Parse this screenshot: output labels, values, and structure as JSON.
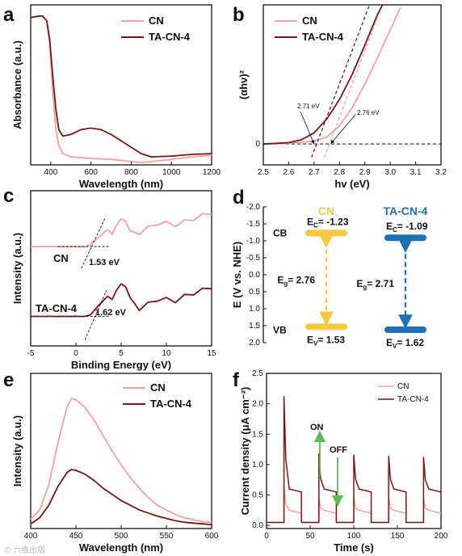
{
  "colors": {
    "cn": "#f2a0a3",
    "ta": "#7a1418",
    "cn_label": "#f5c842",
    "ta_label": "#1f6fb5",
    "axis": "#111111",
    "arrow_green": "#5cb85c"
  },
  "watermark": "© 六维出版",
  "chart_data": [
    {
      "panel": "a",
      "type": "line",
      "xlabel": "Wavelength (nm)",
      "ylabel": "Absorbance (a.u.)",
      "xlim": [
        300,
        1200
      ],
      "ylim": [
        0,
        1
      ],
      "x_ticks": [
        "400",
        "600",
        "800",
        "1000",
        "1200"
      ],
      "legend": [
        "CN",
        "TA-CN-4"
      ],
      "series": [
        {
          "name": "CN",
          "points": [
            [
              300,
              0.92
            ],
            [
              340,
              0.93
            ],
            [
              360,
              0.93
            ],
            [
              380,
              0.9
            ],
            [
              395,
              0.75
            ],
            [
              410,
              0.45
            ],
            [
              425,
              0.22
            ],
            [
              440,
              0.12
            ],
            [
              460,
              0.07
            ],
            [
              500,
              0.05
            ],
            [
              600,
              0.04
            ],
            [
              700,
              0.035
            ],
            [
              800,
              0.02
            ],
            [
              850,
              0.015
            ],
            [
              900,
              0.02
            ],
            [
              1000,
              0.035
            ],
            [
              1100,
              0.05
            ],
            [
              1200,
              0.06
            ]
          ]
        },
        {
          "name": "TA-CN-4",
          "points": [
            [
              300,
              0.92
            ],
            [
              340,
              0.93
            ],
            [
              360,
              0.93
            ],
            [
              380,
              0.9
            ],
            [
              395,
              0.78
            ],
            [
              410,
              0.55
            ],
            [
              425,
              0.35
            ],
            [
              440,
              0.22
            ],
            [
              460,
              0.18
            ],
            [
              500,
              0.19
            ],
            [
              550,
              0.22
            ],
            [
              600,
              0.23
            ],
            [
              650,
              0.22
            ],
            [
              700,
              0.19
            ],
            [
              750,
              0.15
            ],
            [
              800,
              0.11
            ],
            [
              850,
              0.07
            ],
            [
              900,
              0.05
            ],
            [
              1000,
              0.055
            ],
            [
              1100,
              0.065
            ],
            [
              1200,
              0.07
            ]
          ]
        }
      ]
    },
    {
      "panel": "b",
      "type": "line",
      "xlabel": "hv (eV)",
      "ylabel": "(αhν)²",
      "xlim": [
        2.5,
        3.2
      ],
      "ylim": [
        -0.15,
        1
      ],
      "x_ticks": [
        "2.5",
        "2.6",
        "2.7",
        "2.8",
        "2.9",
        "3.0",
        "3.1",
        "3.2"
      ],
      "y_ticks": [
        "0"
      ],
      "legend": [
        "CN",
        "TA-CN-4"
      ],
      "annotations": [
        "2.71 eV",
        "2.76 eV"
      ],
      "series": [
        {
          "name": "CN",
          "points": [
            [
              2.5,
              0.0
            ],
            [
              2.6,
              0.005
            ],
            [
              2.7,
              0.02
            ],
            [
              2.75,
              0.05
            ],
            [
              2.8,
              0.13
            ],
            [
              2.85,
              0.26
            ],
            [
              2.9,
              0.43
            ],
            [
              2.95,
              0.62
            ],
            [
              3.0,
              0.82
            ],
            [
              3.04,
              0.98
            ]
          ]
        },
        {
          "name": "TA-CN-4",
          "points": [
            [
              2.5,
              0.0
            ],
            [
              2.6,
              0.01
            ],
            [
              2.65,
              0.03
            ],
            [
              2.7,
              0.08
            ],
            [
              2.75,
              0.18
            ],
            [
              2.8,
              0.32
            ],
            [
              2.85,
              0.5
            ],
            [
              2.9,
              0.71
            ],
            [
              2.95,
              0.93
            ],
            [
              2.97,
              1.0
            ]
          ]
        }
      ],
      "fits": [
        {
          "name": "CN",
          "x0": 2.76,
          "x1": 2.95
        },
        {
          "name": "TA-CN-4",
          "x0": 2.71,
          "x1": 2.94
        }
      ]
    },
    {
      "panel": "c",
      "type": "line",
      "xlabel": "Binding Energy (eV)",
      "ylabel": "Intensity (a.u.)",
      "xlim": [
        -5,
        15
      ],
      "ylim": [
        0,
        1
      ],
      "x_ticks": [
        "-5",
        "0",
        "5",
        "10",
        "15"
      ],
      "labels": [
        "CN",
        "TA-CN-4"
      ],
      "annotations": [
        "1.53 eV",
        "1.62 eV"
      ],
      "series": [
        {
          "name": "CN",
          "points": [
            [
              -5,
              0.64
            ],
            [
              0,
              0.64
            ],
            [
              1,
              0.64
            ],
            [
              1.5,
              0.65
            ],
            [
              2.5,
              0.7
            ],
            [
              3.5,
              0.75
            ],
            [
              4,
              0.72
            ],
            [
              4.5,
              0.78
            ],
            [
              5,
              0.82
            ],
            [
              5.5,
              0.8
            ],
            [
              6,
              0.74
            ],
            [
              6.5,
              0.72
            ],
            [
              7,
              0.73
            ],
            [
              8,
              0.76
            ],
            [
              9,
              0.79
            ],
            [
              10,
              0.79
            ],
            [
              11,
              0.78
            ],
            [
              12,
              0.8
            ],
            [
              13,
              0.82
            ],
            [
              14,
              0.84
            ],
            [
              15,
              0.86
            ]
          ]
        },
        {
          "name": "TA-CN-4",
          "points": [
            [
              -5,
              0.19
            ],
            [
              0,
              0.19
            ],
            [
              1,
              0.19
            ],
            [
              1.6,
              0.2
            ],
            [
              2.5,
              0.26
            ],
            [
              3.5,
              0.32
            ],
            [
              4,
              0.3
            ],
            [
              4.5,
              0.36
            ],
            [
              5,
              0.4
            ],
            [
              5.5,
              0.38
            ],
            [
              6,
              0.31
            ],
            [
              6.5,
              0.26
            ],
            [
              7,
              0.24
            ],
            [
              8,
              0.27
            ],
            [
              9,
              0.3
            ],
            [
              10,
              0.3
            ],
            [
              11,
              0.29
            ],
            [
              12,
              0.32
            ],
            [
              13,
              0.34
            ],
            [
              14,
              0.36
            ],
            [
              15,
              0.38
            ]
          ]
        }
      ]
    },
    {
      "panel": "d",
      "type": "diagram",
      "ylabel": "E (V vs. NHE)",
      "ylim": [
        -2.0,
        2.0
      ],
      "y_ticks": [
        "-2.0",
        "-1.5",
        "-1.0",
        "-0.5",
        "0.0",
        "0.5",
        "1.0",
        "1.5",
        "2.0"
      ],
      "band_labels": [
        "CB",
        "VB"
      ],
      "materials": [
        {
          "name": "CN",
          "ec": -1.23,
          "ev": 1.53,
          "eg": 2.76,
          "ec_text": "E",
          "ec_sub": "C",
          "ec_val": "= -1.23",
          "ev_text": "E",
          "ev_sub": "V",
          "ev_val": "= 1.53",
          "eg_text": "E",
          "eg_sub": "g",
          "eg_val": "= 2.76"
        },
        {
          "name": "TA-CN-4",
          "ec": -1.09,
          "ev": 1.62,
          "eg": 2.71,
          "ec_text": "E",
          "ec_sub": "C",
          "ec_val": "= -1.09",
          "ev_text": "E",
          "ev_sub": "V",
          "ev_val": "= 1.62",
          "eg_text": "E",
          "eg_sub": "g",
          "eg_val": "= 2.71"
        }
      ]
    },
    {
      "panel": "e",
      "type": "line",
      "xlabel": "Wavelength (nm)",
      "ylabel": "Intensity (a.u.)",
      "xlim": [
        400,
        600
      ],
      "ylim": [
        0,
        1
      ],
      "x_ticks": [
        "400",
        "450",
        "500",
        "550",
        "600"
      ],
      "legend": [
        "CN",
        "TA-CN-4"
      ],
      "series": [
        {
          "name": "CN",
          "points": [
            [
              400,
              0.06
            ],
            [
              410,
              0.12
            ],
            [
              420,
              0.28
            ],
            [
              430,
              0.55
            ],
            [
              440,
              0.78
            ],
            [
              445,
              0.84
            ],
            [
              450,
              0.83
            ],
            [
              460,
              0.78
            ],
            [
              470,
              0.7
            ],
            [
              480,
              0.6
            ],
            [
              490,
              0.5
            ],
            [
              500,
              0.41
            ],
            [
              510,
              0.33
            ],
            [
              520,
              0.26
            ],
            [
              530,
              0.2
            ],
            [
              540,
              0.15
            ],
            [
              550,
              0.12
            ],
            [
              560,
              0.09
            ],
            [
              570,
              0.07
            ],
            [
              580,
              0.055
            ],
            [
              590,
              0.045
            ],
            [
              600,
              0.04
            ]
          ]
        },
        {
          "name": "TA-CN-4",
          "points": [
            [
              400,
              0.03
            ],
            [
              410,
              0.07
            ],
            [
              420,
              0.15
            ],
            [
              430,
              0.27
            ],
            [
              440,
              0.36
            ],
            [
              445,
              0.38
            ],
            [
              450,
              0.375
            ],
            [
              460,
              0.35
            ],
            [
              470,
              0.31
            ],
            [
              480,
              0.26
            ],
            [
              490,
              0.22
            ],
            [
              500,
              0.18
            ],
            [
              510,
              0.15
            ],
            [
              520,
              0.12
            ],
            [
              530,
              0.1
            ],
            [
              540,
              0.08
            ],
            [
              550,
              0.065
            ],
            [
              560,
              0.05
            ],
            [
              570,
              0.04
            ],
            [
              580,
              0.035
            ],
            [
              590,
              0.03
            ],
            [
              600,
              0.025
            ]
          ]
        }
      ]
    },
    {
      "panel": "f",
      "type": "line",
      "xlabel": "Time (s)",
      "ylabel": "Current density (μA cm⁻²)",
      "xlim": [
        0,
        200
      ],
      "ylim": [
        -0.05,
        2.5
      ],
      "x_ticks": [
        "0",
        "50",
        "100",
        "150",
        "200"
      ],
      "y_ticks": [
        "0.0",
        "0.5",
        "1.0",
        "1.5",
        "2.0",
        "2.5"
      ],
      "legend": [
        "CN",
        "TA-CN-4"
      ],
      "annotations": [
        "ON",
        "OFF"
      ],
      "on_off": [
        [
          20,
          40
        ],
        [
          60,
          80
        ],
        [
          100,
          120
        ],
        [
          140,
          160
        ],
        [
          180,
          200
        ]
      ],
      "series": [
        {
          "name": "CN",
          "base": 0.05,
          "peak": 0.65,
          "plateau": 0.2
        },
        {
          "name": "TA-CN-4",
          "base": 0.05,
          "peak": 2.12,
          "plateau": 0.55
        }
      ]
    }
  ]
}
